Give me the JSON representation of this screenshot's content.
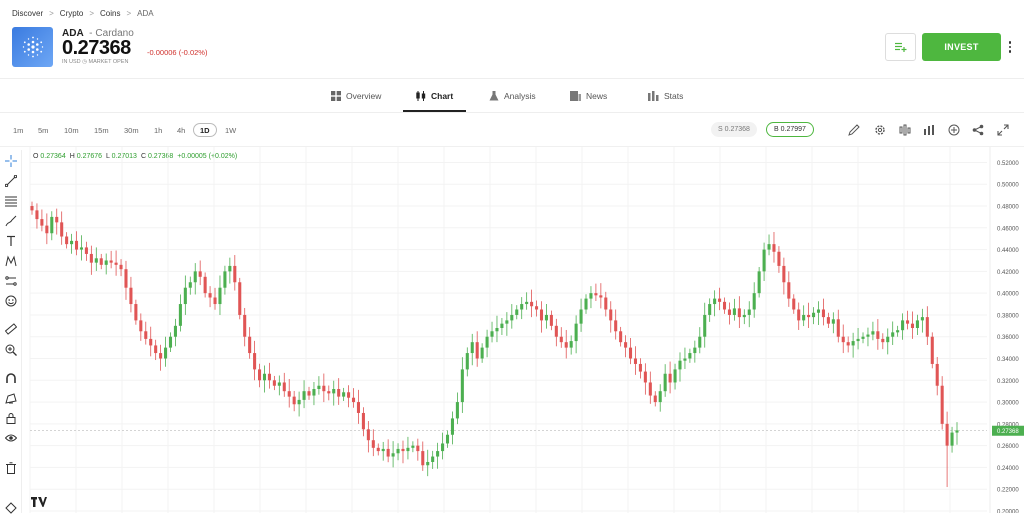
{
  "breadcrumb": {
    "items": [
      "Discover",
      "Crypto",
      "Coins",
      "ADA"
    ]
  },
  "instrument": {
    "symbol": "ADA",
    "name": "Cardano",
    "price": "0.27368",
    "change": "-0.00006 (-0.02%)",
    "currency_note": "IN USD",
    "market_status": "MARKET OPEN"
  },
  "actions": {
    "invest_label": "INVEST"
  },
  "tabs": [
    {
      "label": "Overview",
      "icon": "overview-icon",
      "active": false
    },
    {
      "label": "Chart",
      "icon": "candles-icon",
      "active": true
    },
    {
      "label": "Analysis",
      "icon": "flask-icon",
      "active": false
    },
    {
      "label": "News",
      "icon": "news-icon",
      "active": false
    },
    {
      "label": "Stats",
      "icon": "stats-icon",
      "active": false
    }
  ],
  "timeframes": [
    "1m",
    "5m",
    "10m",
    "15m",
    "30m",
    "1h",
    "4h",
    "1D",
    "1W"
  ],
  "active_timeframe": "1D",
  "quote": {
    "sell": "S 0.27368",
    "buy": "B 0.27997"
  },
  "ohlc": {
    "o_label": "O",
    "o": "0.27364",
    "h_label": "H",
    "h": "0.27676",
    "l_label": "L",
    "l": "0.27013",
    "c_label": "C",
    "c": "0.27368",
    "change": "+0.00005 (+0.02%)"
  },
  "colors": {
    "up": "#4caf50",
    "down": "#e05555",
    "accent": "#4eb73f",
    "price_tag": "#4caf50"
  },
  "chart_data": {
    "type": "candlestick",
    "y_ticks": [
      "0.52000",
      "0.50000",
      "0.48000",
      "0.46000",
      "0.44000",
      "0.42000",
      "0.40000",
      "0.38000",
      "0.36000",
      "0.34000",
      "0.32000",
      "0.30000",
      "0.28000",
      "0.26000",
      "0.24000",
      "0.22000",
      "0.20000"
    ],
    "ylim": [
      0.2,
      0.525
    ],
    "last_price_label": "0.27368",
    "last_price": 0.27368,
    "closes": [
      0.476,
      0.468,
      0.462,
      0.455,
      0.47,
      0.465,
      0.452,
      0.445,
      0.448,
      0.44,
      0.442,
      0.436,
      0.428,
      0.432,
      0.426,
      0.43,
      0.428,
      0.426,
      0.422,
      0.405,
      0.39,
      0.375,
      0.365,
      0.358,
      0.352,
      0.345,
      0.34,
      0.35,
      0.36,
      0.37,
      0.39,
      0.405,
      0.41,
      0.42,
      0.415,
      0.4,
      0.396,
      0.39,
      0.405,
      0.42,
      0.425,
      0.41,
      0.38,
      0.36,
      0.345,
      0.33,
      0.32,
      0.326,
      0.32,
      0.315,
      0.318,
      0.31,
      0.305,
      0.298,
      0.302,
      0.31,
      0.306,
      0.312,
      0.315,
      0.31,
      0.308,
      0.312,
      0.305,
      0.309,
      0.304,
      0.3,
      0.29,
      0.275,
      0.265,
      0.258,
      0.255,
      0.257,
      0.25,
      0.253,
      0.257,
      0.255,
      0.258,
      0.26,
      0.255,
      0.242,
      0.245,
      0.25,
      0.255,
      0.262,
      0.27,
      0.285,
      0.3,
      0.33,
      0.345,
      0.355,
      0.34,
      0.35,
      0.36,
      0.365,
      0.368,
      0.372,
      0.375,
      0.38,
      0.385,
      0.39,
      0.392,
      0.388,
      0.385,
      0.375,
      0.38,
      0.37,
      0.36,
      0.355,
      0.35,
      0.356,
      0.372,
      0.385,
      0.395,
      0.4,
      0.398,
      0.396,
      0.385,
      0.375,
      0.365,
      0.355,
      0.35,
      0.34,
      0.335,
      0.328,
      0.318,
      0.306,
      0.3,
      0.31,
      0.326,
      0.318,
      0.33,
      0.338,
      0.34,
      0.345,
      0.35,
      0.36,
      0.38,
      0.39,
      0.395,
      0.392,
      0.385,
      0.38,
      0.386,
      0.378,
      0.38,
      0.385,
      0.4,
      0.42,
      0.44,
      0.445,
      0.438,
      0.425,
      0.41,
      0.395,
      0.385,
      0.375,
      0.38,
      0.378,
      0.382,
      0.385,
      0.378,
      0.372,
      0.376,
      0.36,
      0.355,
      0.352,
      0.356,
      0.358,
      0.36,
      0.362,
      0.365,
      0.358,
      0.355,
      0.36,
      0.364,
      0.366,
      0.375,
      0.372,
      0.368,
      0.375,
      0.378,
      0.36,
      0.335,
      0.315,
      0.28,
      0.26,
      0.272,
      0.274
    ]
  }
}
